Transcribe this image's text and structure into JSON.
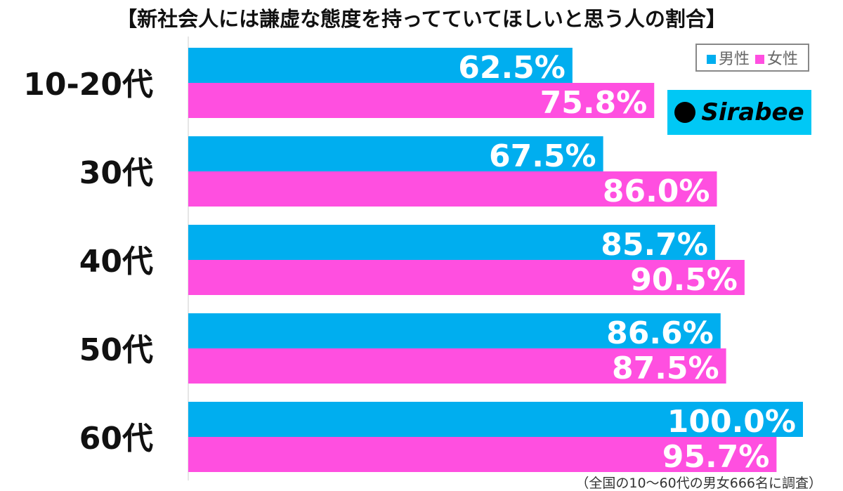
{
  "title": "【新社会人には謙虚な態度を持ってていてほしいと思う人の割合】",
  "legend": [
    {
      "label": "男性",
      "color": "#00AEEF"
    },
    {
      "label": "女性",
      "color": "#FF4FE0"
    }
  ],
  "logo": "Sirabee",
  "note": "（全国の10〜60代の男女666名に調査）",
  "chart_data": {
    "type": "bar",
    "orientation": "horizontal",
    "title": "【新社会人には謙虚な態度を持ってていてほしいと思う人の割合】",
    "categories": [
      "10-20代",
      "30代",
      "40代",
      "50代",
      "60代"
    ],
    "series": [
      {
        "name": "男性",
        "color": "#00AEEF",
        "values": [
          62.5,
          67.5,
          85.7,
          86.6,
          100.0
        ]
      },
      {
        "name": "女性",
        "color": "#FF4FE0",
        "values": [
          75.8,
          86.0,
          90.5,
          87.5,
          95.7
        ]
      }
    ],
    "xlim": [
      0,
      100
    ],
    "value_suffix": "%",
    "grid": false,
    "legend_position": "top-right"
  }
}
